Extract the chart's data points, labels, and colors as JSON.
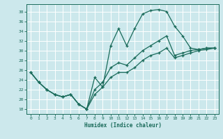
{
  "xlabel": "Humidex (Indice chaleur)",
  "background_color": "#cce8ec",
  "grid_color": "#ffffff",
  "line_color": "#1a6b5a",
  "xlim": [
    -0.5,
    23.5
  ],
  "ylim": [
    17.0,
    39.5
  ],
  "yticks": [
    18,
    20,
    22,
    24,
    26,
    28,
    30,
    32,
    34,
    36,
    38
  ],
  "xticks": [
    0,
    1,
    2,
    3,
    4,
    5,
    6,
    7,
    8,
    9,
    10,
    11,
    12,
    13,
    14,
    15,
    16,
    17,
    18,
    19,
    20,
    21,
    22,
    23
  ],
  "curve1_x": [
    0,
    1,
    2,
    3,
    4,
    5,
    6,
    7,
    8,
    9,
    10,
    11,
    12,
    13,
    14,
    15,
    16,
    17,
    18,
    19,
    20,
    21,
    22,
    23
  ],
  "curve1_y": [
    25.5,
    23.5,
    22.0,
    21.0,
    20.5,
    21.0,
    19.0,
    18.0,
    24.5,
    22.5,
    31.0,
    34.5,
    31.0,
    34.5,
    37.5,
    38.2,
    38.4,
    38.0,
    35.0,
    33.0,
    30.5,
    30.2,
    30.5,
    30.5
  ],
  "curve2_x": [
    0,
    1,
    2,
    3,
    4,
    5,
    6,
    7,
    8,
    9,
    10,
    11,
    12,
    13,
    14,
    15,
    16,
    17,
    18,
    19,
    20,
    21,
    22,
    23
  ],
  "curve2_y": [
    25.5,
    23.5,
    22.0,
    21.0,
    20.5,
    21.0,
    19.0,
    18.0,
    22.0,
    23.5,
    26.5,
    27.5,
    27.0,
    28.5,
    30.0,
    31.0,
    32.0,
    33.0,
    29.0,
    29.5,
    30.0,
    30.2,
    30.5,
    30.5
  ],
  "curve3_x": [
    0,
    1,
    2,
    3,
    4,
    5,
    6,
    7,
    8,
    9,
    10,
    11,
    12,
    13,
    14,
    15,
    16,
    17,
    18,
    19,
    20,
    21,
    22,
    23
  ],
  "curve3_y": [
    25.5,
    23.5,
    22.0,
    21.0,
    20.5,
    21.0,
    19.0,
    18.0,
    21.0,
    22.5,
    24.5,
    25.5,
    25.5,
    26.5,
    28.0,
    29.0,
    29.5,
    30.5,
    28.5,
    29.0,
    29.5,
    30.0,
    30.2,
    30.5
  ]
}
